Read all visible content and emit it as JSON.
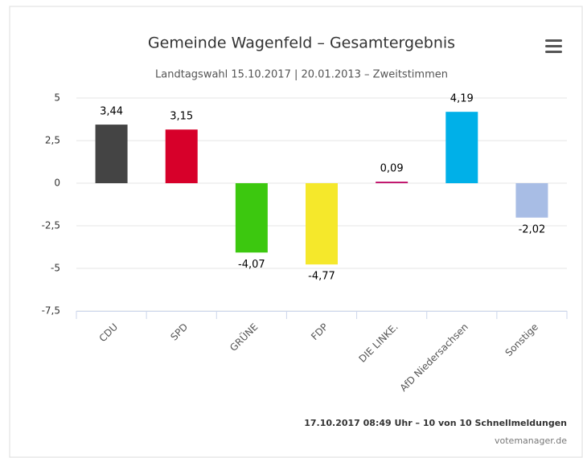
{
  "chart_data": {
    "type": "bar",
    "title": "Gemeinde Wagenfeld – Gesamtergebnis",
    "subtitle": "Landtagswahl 15.10.2017 | 20.01.2013 – Zweitstimmen",
    "categories": [
      "CDU",
      "SPD",
      "GRÜNE",
      "FDP",
      "DIE LINKE.",
      "AfD Niedersachsen",
      "Sonstige"
    ],
    "values": [
      3.44,
      3.15,
      -4.07,
      -4.77,
      0.09,
      4.19,
      -2.02
    ],
    "value_labels": [
      "3,44",
      "3,15",
      "-4,07",
      "-4,77",
      "0,09",
      "4,19",
      "-2,02"
    ],
    "colors": [
      "#444444",
      "#d7002a",
      "#3cc80f",
      "#f5e82b",
      "#c0106a",
      "#00b0e8",
      "#a8bde5"
    ],
    "ylim": [
      -7.5,
      5
    ],
    "yticks": [
      {
        "value": -7.5,
        "label": "-7,5"
      },
      -5,
      {
        "value": -2.5,
        "label": "-2,5"
      },
      0,
      {
        "value": 2.5,
        "label": "2,5"
      },
      5
    ],
    "grid": true,
    "footnote": "17.10.2017 08:49 Uhr – 10 von 10 Schnellmeldungen",
    "credits": "votemanager.de"
  }
}
